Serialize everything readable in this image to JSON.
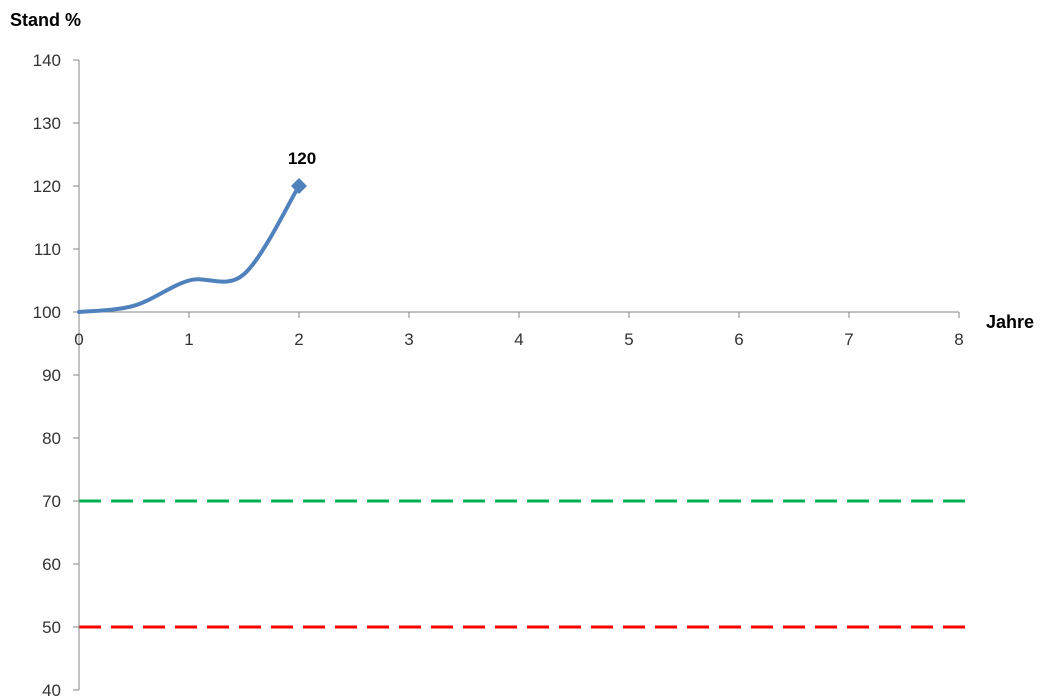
{
  "chart_data": {
    "type": "line",
    "ylabel": "Stand %",
    "xlabel": "Jahre",
    "xlim": [
      0,
      8
    ],
    "ylim": [
      40,
      140
    ],
    "x_ticks": [
      "0",
      "1",
      "2",
      "3",
      "4",
      "5",
      "6",
      "7",
      "8"
    ],
    "y_ticks": [
      "140",
      "130",
      "120",
      "110",
      "100",
      "90",
      "80",
      "70",
      "60",
      "50",
      "40"
    ],
    "x_axis_crosses_y_at": 100,
    "grid": false,
    "legend": "none",
    "series": [
      {
        "color": "#4f81bd",
        "smooth": true,
        "x": [
          0,
          0.5,
          1,
          1.5,
          2
        ],
        "y": [
          100,
          101,
          105,
          106,
          120
        ],
        "end_marker": "diamond",
        "end_label": "120"
      }
    ],
    "reference_lines": [
      {
        "y": 70,
        "color": "#00b050",
        "dashed": true,
        "x_range": [
          0,
          8.1
        ]
      },
      {
        "y": 50,
        "color": "#ff0000",
        "dashed": true,
        "x_range": [
          0,
          8.1
        ]
      }
    ]
  }
}
